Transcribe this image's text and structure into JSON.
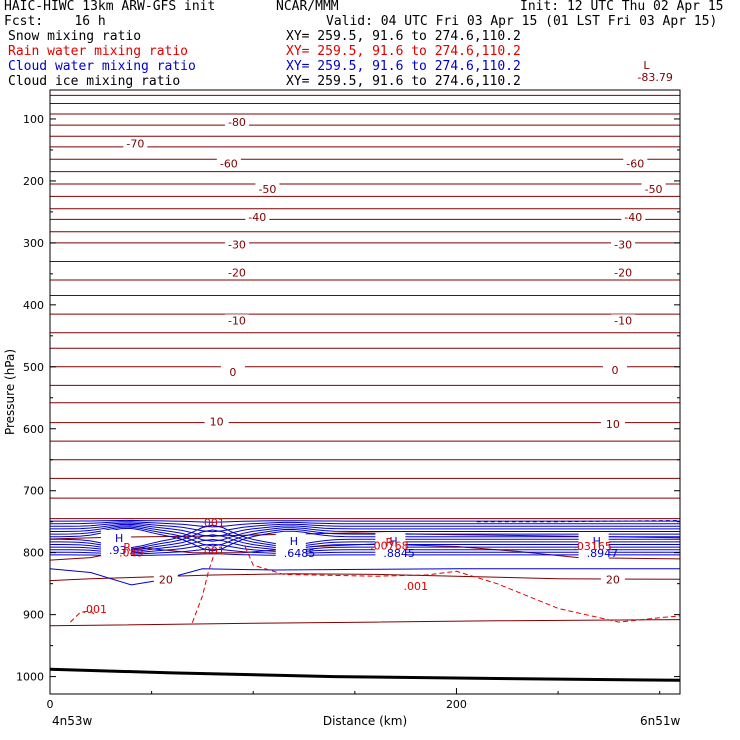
{
  "header": {
    "model": "HAIC-HIWC 13km ARW-GFS init",
    "org": "NCAR/MMM",
    "init": "Init: 12 UTC Thu 02 Apr 15",
    "fcst": "Fcst:    16 h",
    "valid": "Valid: 04 UTC Fri 03 Apr 15 (01 LST Fri 03 Apr 15)"
  },
  "fields": [
    {
      "name": "Snow mixing ratio",
      "xy": "XY= 259.5, 91.6 to 274.6,110.2",
      "color": "#000000"
    },
    {
      "name": "Rain water mixing ratio",
      "xy": "XY= 259.5, 91.6 to 274.6,110.2",
      "color": "#e00000"
    },
    {
      "name": "Cloud water mixing ratio",
      "xy": "XY= 259.5, 91.6 to 274.6,110.2",
      "color": "#0000cc"
    },
    {
      "name": "Cloud ice mixing ratio",
      "xy": "XY= 259.5, 91.6 to 274.6,110.2",
      "color": "#000000"
    }
  ],
  "chart_data": {
    "type": "contour cross-section",
    "ylabel": "Pressure (hPa)",
    "xlabel": "Distance (km)",
    "y_ticks": [
      100,
      200,
      300,
      400,
      500,
      600,
      700,
      800,
      900,
      1000
    ],
    "ylim": [
      1050,
      50
    ],
    "x_ticks": [
      0,
      200
    ],
    "xlim": [
      0,
      310
    ],
    "x_end_labels": [
      "4n53w",
      "6n51w"
    ],
    "temperature_labels": [
      {
        "text": "-80",
        "x": 92,
        "p": 105
      },
      {
        "text": "-70",
        "x": 42,
        "p": 140
      },
      {
        "text": "-60",
        "x": 88,
        "p": 172
      },
      {
        "text": "-60",
        "x": 288,
        "p": 172
      },
      {
        "text": "-50",
        "x": 107,
        "p": 213
      },
      {
        "text": "-50",
        "x": 297,
        "p": 213
      },
      {
        "text": "-40",
        "x": 102,
        "p": 258
      },
      {
        "text": "-40",
        "x": 287,
        "p": 258
      },
      {
        "text": "-30",
        "x": 92,
        "p": 303
      },
      {
        "text": "-30",
        "x": 282,
        "p": 303
      },
      {
        "text": "-20",
        "x": 92,
        "p": 348
      },
      {
        "text": "-20",
        "x": 282,
        "p": 348
      },
      {
        "text": "-10",
        "x": 92,
        "p": 425
      },
      {
        "text": "-10",
        "x": 282,
        "p": 425
      },
      {
        "text": "0",
        "x": 90,
        "p": 508
      },
      {
        "text": "0",
        "x": 278,
        "p": 505
      },
      {
        "text": "10",
        "x": 82,
        "p": 588
      },
      {
        "text": "10",
        "x": 277,
        "p": 592
      },
      {
        "text": "20",
        "x": 57,
        "p": 843
      },
      {
        "text": "20",
        "x": 277,
        "p": 843
      }
    ],
    "extrema": [
      {
        "mark": "L",
        "value": "-83.79",
        "x": 292,
        "p": 10
      },
      {
        "mark": "H",
        "value": ".93",
        "x": 32,
        "p": 773
      },
      {
        "mark": "H",
        "value": ".6485",
        "x": 118,
        "p": 778
      },
      {
        "mark": "H",
        "value": ".8845",
        "x": 167,
        "p": 778
      },
      {
        "mark": "H",
        "value": ".8947",
        "x": 267,
        "p": 778
      }
    ],
    "rain_labels": [
      {
        "text": ".049",
        "x": 40,
        "p": 806
      },
      {
        "text": ".001",
        "x": 80,
        "p": 758
      },
      {
        "text": ".001",
        "x": 80,
        "p": 803
      },
      {
        "text": ".00768",
        "x": 167,
        "p": 795
      },
      {
        "text": ".03165",
        "x": 267,
        "p": 796
      },
      {
        "text": ".001",
        "x": 180,
        "p": 860
      },
      {
        "text": ".001",
        "x": 22,
        "p": 897
      }
    ],
    "rain_marks": [
      "R",
      "R"
    ],
    "colors": {
      "temperature": "#800000",
      "cloud_water": "#0000cc",
      "rain": "#e00000",
      "ground": "#000000"
    }
  }
}
